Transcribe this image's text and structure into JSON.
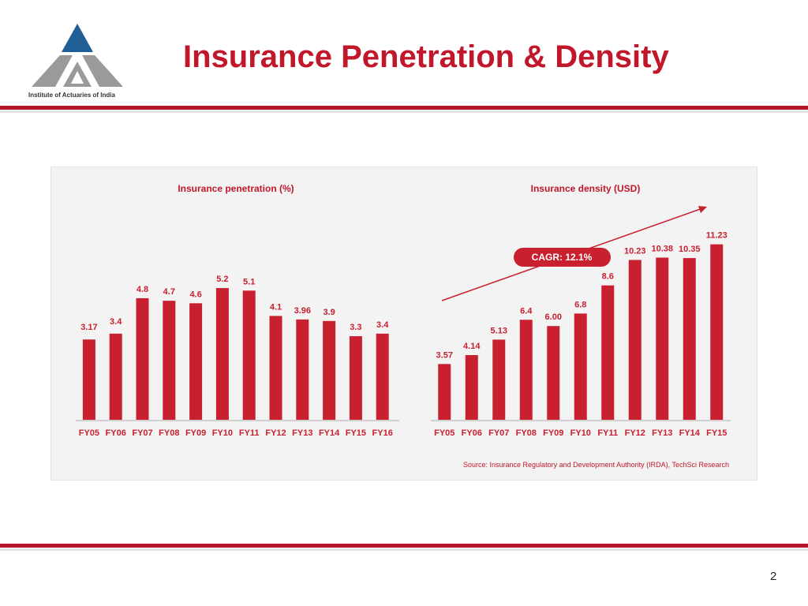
{
  "slide": {
    "title": "Insurance Penetration & Density",
    "page_number": "2"
  },
  "logo": {
    "caption": "Institute of Actuaries of India",
    "colors": {
      "top": "#1f5f96",
      "bottom": "#9a9a9a"
    }
  },
  "colors": {
    "title": "#c0182a",
    "rule": "#b5142b",
    "bar": "#c8202f",
    "label": "#c8202f",
    "cagr_badge": "#c8202f"
  },
  "source_note": "Source: Insurance Regulatory and Development Authority (IRDA), TechSci Research",
  "chart_data": [
    {
      "type": "bar",
      "title": "Insurance penetration (%)",
      "categories": [
        "FY05",
        "FY06",
        "FY07",
        "FY08",
        "FY09",
        "FY10",
        "FY11",
        "FY12",
        "FY13",
        "FY14",
        "FY15",
        "FY16"
      ],
      "values": [
        3.17,
        3.4,
        4.8,
        4.7,
        4.6,
        5.2,
        5.1,
        4.1,
        3.96,
        3.9,
        3.3,
        3.4
      ],
      "value_labels": [
        "3.17",
        "3.4",
        "4.8",
        "4.7",
        "4.6",
        "5.2",
        "5.1",
        "4.1",
        "3.96",
        "3.9",
        "3.3",
        "3.4"
      ],
      "xlabel": "",
      "ylabel": "",
      "ylim": [
        0,
        6
      ],
      "grid": false,
      "legend": "none"
    },
    {
      "type": "bar",
      "title": "Insurance density (USD)",
      "categories": [
        "FY05",
        "FY06",
        "FY07",
        "FY08",
        "FY09",
        "FY10",
        "FY11",
        "FY12",
        "FY13",
        "FY14",
        "FY15"
      ],
      "values": [
        3.57,
        4.14,
        5.13,
        6.4,
        6.0,
        6.8,
        8.6,
        10.23,
        10.38,
        10.35,
        11.23
      ],
      "value_labels": [
        "3.57",
        "4.14",
        "5.13",
        "6.4",
        "6.00",
        "6.8",
        "8.6",
        "10.23",
        "10.38",
        "10.35",
        "11.23"
      ],
      "xlabel": "",
      "ylabel": "",
      "ylim": [
        0,
        12.5
      ],
      "grid": false,
      "legend": "none",
      "annotations": [
        {
          "type": "trend-arrow",
          "label": "CAGR: 12.1%"
        }
      ]
    }
  ]
}
